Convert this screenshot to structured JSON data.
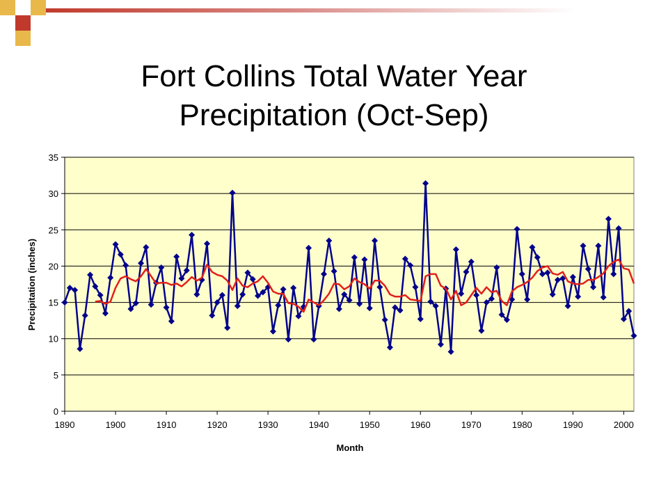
{
  "slide": {
    "title_line1": "Fort Collins Total Water Year",
    "title_line2": "Precipitation (Oct-Sep)"
  },
  "chart_data": {
    "type": "line",
    "xlabel": "Month",
    "ylabel": "Precipitation (inches)",
    "xlim": [
      1890,
      2002
    ],
    "ylim": [
      0,
      35
    ],
    "x_ticks": [
      1890,
      1900,
      1910,
      1920,
      1930,
      1940,
      1950,
      1960,
      1970,
      1980,
      1990,
      2000
    ],
    "y_ticks": [
      0,
      5,
      10,
      15,
      20,
      25,
      30,
      35
    ],
    "grid": "horizontal",
    "background": "#FFFFCC",
    "series": [
      {
        "color": "#00008B",
        "marker": "diamond",
        "x": [
          1890,
          1891,
          1892,
          1893,
          1894,
          1895,
          1896,
          1897,
          1898,
          1899,
          1900,
          1901,
          1902,
          1903,
          1904,
          1905,
          1906,
          1907,
          1908,
          1909,
          1910,
          1911,
          1912,
          1913,
          1914,
          1915,
          1916,
          1917,
          1918,
          1919,
          1920,
          1921,
          1922,
          1923,
          1924,
          1925,
          1926,
          1927,
          1928,
          1929,
          1930,
          1931,
          1932,
          1933,
          1934,
          1935,
          1936,
          1937,
          1938,
          1939,
          1940,
          1941,
          1942,
          1943,
          1944,
          1945,
          1946,
          1947,
          1948,
          1949,
          1950,
          1951,
          1952,
          1953,
          1954,
          1955,
          1956,
          1957,
          1958,
          1959,
          1960,
          1961,
          1962,
          1963,
          1964,
          1965,
          1966,
          1967,
          1968,
          1969,
          1970,
          1971,
          1972,
          1973,
          1974,
          1975,
          1976,
          1977,
          1978,
          1979,
          1980,
          1981,
          1982,
          1983,
          1984,
          1985,
          1986,
          1987,
          1988,
          1989,
          1990,
          1991,
          1992,
          1993,
          1994,
          1995,
          1996,
          1997,
          1998,
          1999,
          2000,
          2001,
          2002
        ],
        "values": [
          15.0,
          17.0,
          16.7,
          8.6,
          13.2,
          18.8,
          17.2,
          16.0,
          13.5,
          18.4,
          23.0,
          21.6,
          20.1,
          14.1,
          14.9,
          20.4,
          22.6,
          14.7,
          17.7,
          19.8,
          14.3,
          12.4,
          21.3,
          18.3,
          19.4,
          24.3,
          16.1,
          18.1,
          23.1,
          13.2,
          15.0,
          16.0,
          11.5,
          30.1,
          14.5,
          16.1,
          19.1,
          18.2,
          15.9,
          16.4,
          17.1,
          11.0,
          14.6,
          16.8,
          9.9,
          17.0,
          13.1,
          14.4,
          22.5,
          9.9,
          14.5,
          18.9,
          23.5,
          19.3,
          14.1,
          16.1,
          15.3,
          21.2,
          14.8,
          20.9,
          14.2,
          23.5,
          17.1,
          12.6,
          8.8,
          14.3,
          13.9,
          21.0,
          20.1,
          17.1,
          12.7,
          31.4,
          15.1,
          14.5,
          9.2,
          16.9,
          8.2,
          22.3,
          16.2,
          19.2,
          20.6,
          16.0,
          11.1,
          15.0,
          15.5,
          19.8,
          13.3,
          12.6,
          15.4,
          25.1,
          18.9,
          15.4,
          22.6,
          21.2,
          18.9,
          19.1,
          16.1,
          18.1,
          18.3,
          14.5,
          18.5,
          15.8,
          22.8,
          19.6,
          17.1,
          22.8,
          15.7,
          26.5,
          18.9,
          25.2,
          12.7,
          13.8,
          10.4
        ]
      },
      {
        "color": "#E0201B",
        "marker": "none",
        "x": [
          1896,
          1897,
          1898,
          1899,
          1900,
          1901,
          1902,
          1903,
          1904,
          1905,
          1906,
          1907,
          1908,
          1909,
          1910,
          1911,
          1912,
          1913,
          1914,
          1915,
          1916,
          1917,
          1918,
          1919,
          1920,
          1921,
          1922,
          1923,
          1924,
          1925,
          1926,
          1927,
          1928,
          1929,
          1930,
          1931,
          1932,
          1933,
          1934,
          1935,
          1936,
          1937,
          1938,
          1939,
          1940,
          1941,
          1942,
          1943,
          1944,
          1945,
          1946,
          1947,
          1948,
          1949,
          1950,
          1951,
          1952,
          1953,
          1954,
          1955,
          1956,
          1957,
          1958,
          1959,
          1960,
          1961,
          1962,
          1963,
          1964,
          1965,
          1966,
          1967,
          1968,
          1969,
          1970,
          1971,
          1972,
          1973,
          1974,
          1975,
          1976,
          1977,
          1978,
          1979,
          1980,
          1981,
          1982,
          1983,
          1984,
          1985,
          1986,
          1987,
          1988,
          1989,
          1990,
          1991,
          1992,
          1993,
          1994,
          1995,
          1996,
          1997,
          1998,
          1999,
          2000,
          2001,
          2002
        ],
        "values": [
          15.1,
          15.2,
          14.8,
          15.1,
          17.0,
          18.3,
          18.6,
          18.2,
          17.9,
          18.6,
          19.6,
          18.6,
          17.6,
          17.7,
          17.7,
          17.4,
          17.6,
          17.2,
          17.8,
          18.5,
          18.0,
          18.4,
          20.2,
          19.2,
          18.8,
          18.6,
          18.0,
          16.7,
          18.3,
          17.3,
          17.1,
          17.6,
          17.9,
          18.6,
          17.7,
          16.5,
          16.2,
          16.2,
          14.9,
          14.8,
          14.4,
          13.7,
          15.4,
          15.0,
          14.6,
          15.3,
          16.2,
          17.6,
          17.5,
          16.8,
          17.2,
          18.3,
          17.8,
          17.5,
          16.9,
          18.0,
          18.0,
          17.3,
          16.1,
          15.8,
          15.8,
          16.0,
          15.4,
          15.3,
          15.2,
          18.6,
          18.9,
          18.9,
          17.3,
          16.9,
          15.4,
          16.6,
          14.6,
          15.0,
          16.0,
          17.0,
          16.2,
          17.1,
          16.4,
          16.6,
          15.2,
          14.6,
          16.5,
          17.1,
          17.4,
          17.8,
          18.4,
          19.3,
          19.8,
          20.0,
          19.0,
          18.8,
          19.2,
          17.9,
          17.6,
          17.5,
          17.6,
          18.1,
          18.1,
          18.5,
          19.0,
          20.0,
          20.6,
          20.9,
          19.7,
          19.5,
          17.6
        ]
      }
    ]
  }
}
